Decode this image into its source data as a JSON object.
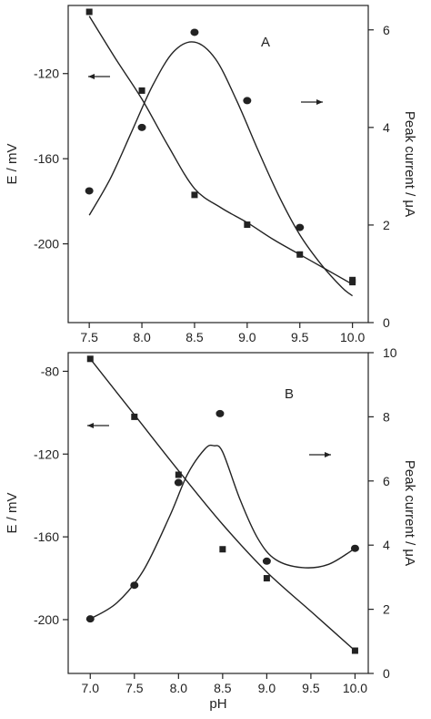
{
  "figure": {
    "xlabel": "pH",
    "colors": {
      "ink": "#222222",
      "background": "#ffffff"
    }
  },
  "chart_data": [
    {
      "type": "scatter",
      "panel_label": "A",
      "xlabel": "",
      "ylabel_left": "E / mV",
      "ylabel_right": "Peak current / μA",
      "xlim": [
        7.3,
        10.15
      ],
      "ylim_left": [
        -237,
        -88
      ],
      "ylim_right": [
        0,
        6.5
      ],
      "x_ticks": [
        "7.5",
        "8.0",
        "8.5",
        "9.0",
        "9.5",
        "10.0"
      ],
      "y_left_ticks": [
        "-120",
        "-160",
        "-200"
      ],
      "y_right_ticks": [
        "0",
        "2",
        "4",
        "6"
      ],
      "grid": false,
      "arrows": [
        "left",
        "right"
      ],
      "series": [
        {
          "axis": "left",
          "marker": "square",
          "x": [
            7.5,
            8.0,
            8.5,
            9.0,
            9.5,
            10.0,
            10.0
          ],
          "y": [
            -91,
            -128,
            -177,
            -191,
            -205,
            -218,
            -217
          ]
        },
        {
          "axis": "right",
          "marker": "circle",
          "x": [
            7.5,
            8.0,
            8.5,
            9.0,
            9.5
          ],
          "y": [
            2.7,
            4.0,
            5.95,
            4.55,
            1.95
          ]
        }
      ],
      "fit_lines": [
        {
          "axis": "left",
          "x": [
            7.5,
            7.75,
            8.0,
            8.25,
            8.5,
            8.75,
            9.0,
            9.25,
            9.5,
            9.75,
            10.0
          ],
          "y": [
            -93,
            -113,
            -132,
            -154,
            -174,
            -183,
            -190,
            -198,
            -205,
            -212,
            -219
          ]
        },
        {
          "axis": "right",
          "x": [
            7.5,
            7.7,
            7.9,
            8.1,
            8.3,
            8.5,
            8.7,
            8.9,
            9.1,
            9.3,
            9.5,
            9.7,
            9.9,
            10.0
          ],
          "y": [
            2.2,
            2.95,
            3.9,
            4.85,
            5.55,
            5.75,
            5.4,
            4.55,
            3.55,
            2.6,
            1.8,
            1.2,
            0.72,
            0.55
          ]
        }
      ]
    },
    {
      "type": "scatter",
      "panel_label": "B",
      "xlabel": "pH",
      "ylabel_left": "E / mV",
      "ylabel_right": "Peak current / μA",
      "xlim": [
        6.75,
        10.15
      ],
      "ylim_left": [
        -226,
        -71
      ],
      "ylim_right": [
        0,
        10
      ],
      "x_ticks": [
        "7.0",
        "7.5",
        "8.0",
        "8.5",
        "9.0",
        "9.5",
        "10.0"
      ],
      "y_left_ticks": [
        "-80",
        "-120",
        "-160",
        "-200"
      ],
      "y_right_ticks": [
        "0",
        "2",
        "4",
        "6",
        "8",
        "10"
      ],
      "grid": false,
      "arrows": [
        "left",
        "right"
      ],
      "series": [
        {
          "axis": "left",
          "marker": "square",
          "x": [
            7.0,
            7.5,
            8.0,
            8.5,
            9.0,
            10.0
          ],
          "y": [
            -74,
            -102,
            -130,
            -166,
            -180,
            -215
          ]
        },
        {
          "axis": "right",
          "marker": "circle",
          "x": [
            7.0,
            7.5,
            8.0,
            8.47,
            9.0,
            10.0
          ],
          "y": [
            1.7,
            2.75,
            5.95,
            8.1,
            3.5,
            3.9
          ]
        }
      ],
      "fit_lines": [
        {
          "axis": "left",
          "x": [
            7.0,
            7.5,
            8.0,
            8.5,
            9.0,
            9.5,
            10.0
          ],
          "y": [
            -74,
            -101,
            -128,
            -154,
            -177,
            -196,
            -215
          ]
        },
        {
          "axis": "right",
          "x": [
            7.0,
            7.3,
            7.6,
            7.9,
            8.1,
            8.3,
            8.4,
            8.5,
            8.7,
            8.9,
            9.1,
            9.4,
            9.7,
            10.0
          ],
          "y": [
            1.7,
            2.2,
            3.2,
            4.9,
            6.2,
            7.0,
            7.1,
            6.9,
            5.4,
            4.2,
            3.55,
            3.3,
            3.4,
            3.9
          ]
        }
      ]
    }
  ]
}
